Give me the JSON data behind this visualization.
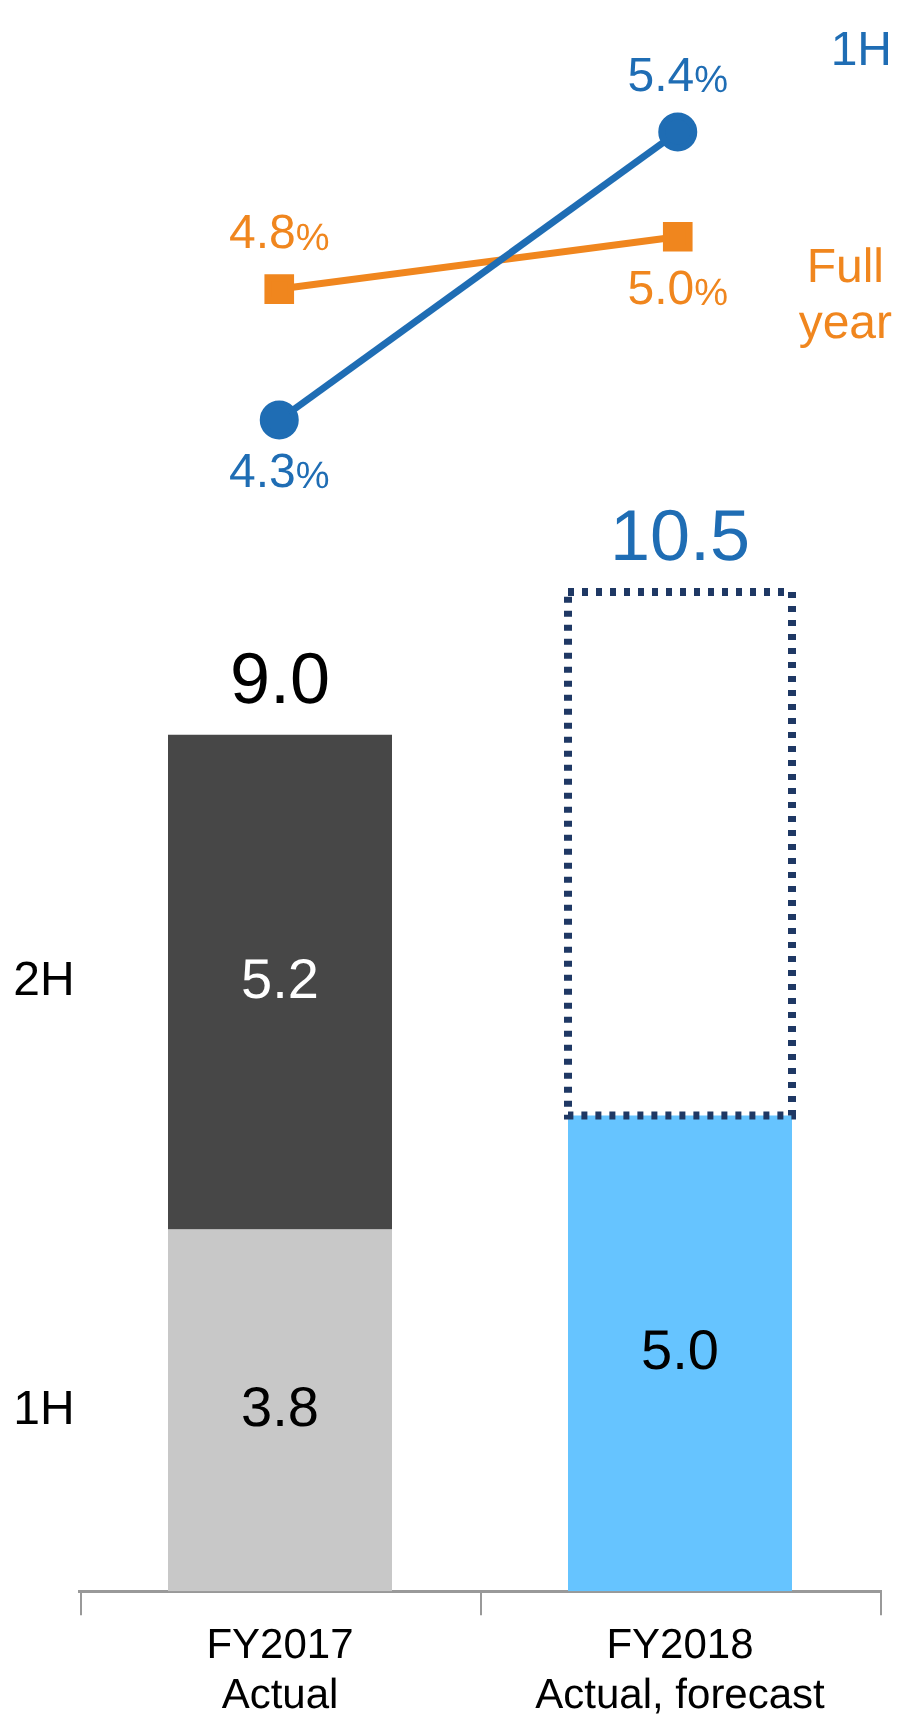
{
  "chart_data": [
    {
      "type": "line",
      "categories": [
        null,
        null
      ],
      "tick_labels": false,
      "grid": false,
      "legend": false,
      "series": [
        {
          "name": "1H",
          "color": "#1f6db4",
          "marker": "circle",
          "values": [
            4.3,
            5.4
          ],
          "value_labels": [
            "4.3%",
            "5.4%"
          ]
        },
        {
          "name": "Full year",
          "color": "#f0861e",
          "marker": "square",
          "values": [
            4.8,
            5.0
          ],
          "value_labels": [
            "4.8%",
            "5.0%"
          ]
        }
      ]
    },
    {
      "type": "bar",
      "stacked": true,
      "categories": [
        "FY2017\nActual",
        "FY2018\nActual, forecast"
      ],
      "tick_labels": "x",
      "grid": false,
      "legend": false,
      "series": [
        {
          "name": "1H",
          "colors": [
            "#c8c8c8",
            "#66c4ff"
          ],
          "values": [
            3.8,
            5.0
          ],
          "value_labels": [
            "3.8",
            "5.0"
          ]
        },
        {
          "name": "2H",
          "colors": [
            "#474747",
            "#474747"
          ],
          "values": [
            5.2,
            null
          ],
          "value_labels": [
            "5.2",
            null
          ]
        },
        {
          "color": "#1f3864",
          "line_style": "dotted",
          "values": [
            null,
            5.5
          ]
        }
      ],
      "totals": [
        "9.0",
        "10.5"
      ]
    }
  ]
}
